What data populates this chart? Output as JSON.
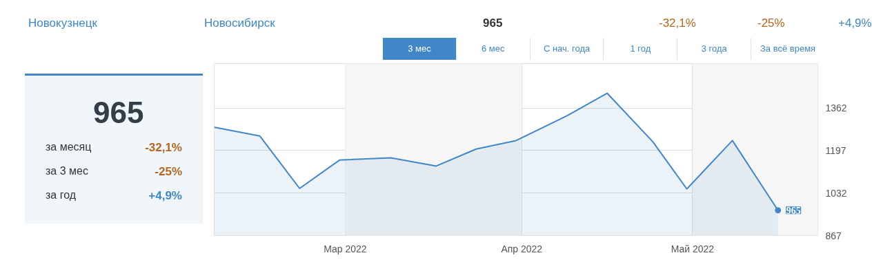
{
  "chart_data": {
    "type": "area",
    "annotations": [
      "Новокузнецк",
      "Новосибирск",
      "965",
      "-32,1%",
      "-25%",
      "+4,9%",
      "3 мес",
      "6 мес",
      "С нач. года",
      "1 год",
      "3 года",
      "За всё время",
      "965",
      "за месяц",
      "-32,1%",
      "за 3 мес",
      "-25%",
      "за год",
      "+4,9%"
    ],
    "x": [
      "2022-02-06",
      "2022-02-14",
      "2022-02-21",
      "2022-02-28",
      "2022-03-09",
      "2022-03-17",
      "2022-03-24",
      "2022-03-31",
      "2022-04-09",
      "2022-04-16",
      "2022-04-24",
      "2022-04-30",
      "2022-05-08",
      "2022-05-16"
    ],
    "series": [
      {
        "color": "#3f87c8",
        "values": [
          1288,
          1254,
          1050,
          1160,
          1169,
          1137,
          1203,
          1236,
          1333,
          1420,
          1232,
          1048,
          1236,
          965
        ],
        "value_labels": [
          null,
          null,
          null,
          null,
          null,
          null,
          null,
          null,
          null,
          null,
          null,
          null,
          null,
          "965"
        ]
      }
    ],
    "xlim": [
      "2022-02-06",
      "2022-05-23"
    ],
    "xticks": [
      {
        "value": "2022-03-01",
        "label": "Мар 2022"
      },
      {
        "value": "2022-04-01",
        "label": "Апр 2022"
      },
      {
        "value": "2022-05-01",
        "label": "Май 2022"
      }
    ],
    "ylim": [
      867,
      1535
    ],
    "yticks": [
      867,
      1032,
      1197,
      1362
    ],
    "bands": [
      {
        "axis": "x",
        "from": "2022-03-01",
        "to": "2022-04-01",
        "color": "#f6f6f6"
      },
      {
        "axis": "x",
        "from": "2022-05-01",
        "to": "2022-05-23",
        "color": "#f6f6f6"
      }
    ],
    "grid": true
  }
}
